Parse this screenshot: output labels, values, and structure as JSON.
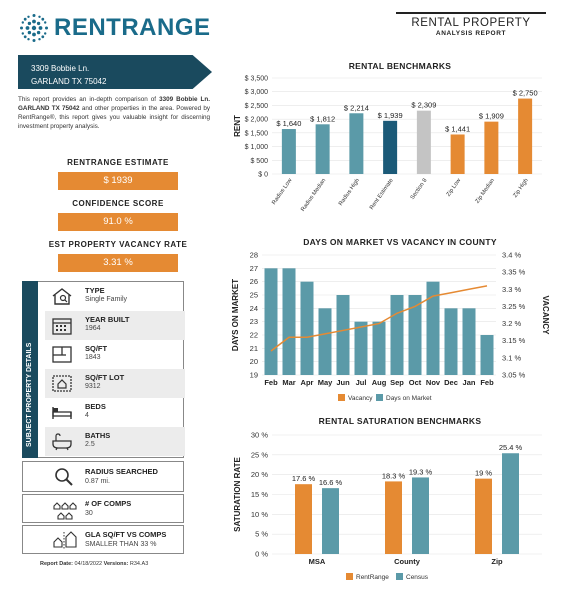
{
  "brand": {
    "name": "RENTRANGE"
  },
  "report_header": {
    "title": "RENTAL PROPERTY",
    "subtitle": "ANALYSIS REPORT"
  },
  "address": {
    "line1": "3309 Bobbie Ln.",
    "line2": "GARLAND TX 75042"
  },
  "description": {
    "pre": "This report provides an in-depth comparison of ",
    "bold1": "3309 Bobbie Ln. GARLAND TX 75042",
    "post": " and other properties in the area. Powered by RentRange®, this report gives you valuable insight for discerning investment property analysis."
  },
  "metrics": {
    "estimate_label": "RENTRANGE ESTIMATE",
    "estimate_value": "$ 1939",
    "confidence_label": "CONFIDENCE SCORE",
    "confidence_value": "91.0 %",
    "vacancy_label": "EST PROPERTY VACANCY RATE",
    "vacancy_value": "3.31 %"
  },
  "details": {
    "section_title": "SUBJECT PROPERTY DETAILS",
    "rows": [
      {
        "label": "TYPE",
        "value": "Single Family"
      },
      {
        "label": "YEAR BUILT",
        "value": "1964"
      },
      {
        "label": "SQ/FT",
        "value": "1843"
      },
      {
        "label": "SQ/FT LOT",
        "value": "9312"
      },
      {
        "label": "BEDS",
        "value": "4"
      },
      {
        "label": "BATHS",
        "value": "2.5"
      }
    ],
    "radius_label": "RADIUS SEARCHED",
    "radius_value": "0.87 mi.",
    "comps_label": "# OF COMPS",
    "comps_value": "30",
    "gla_label": "GLA SQ/FT VS COMPS",
    "gla_value": "SMALLER THAN 33 %"
  },
  "footer": {
    "report_date_label": "Report Date:",
    "report_date": "04/18/2022",
    "version_label": "Versions:",
    "version": "R34.A3"
  },
  "colors": {
    "navy": "#1a4a5e",
    "teal": "#5b9aa8",
    "dark_teal": "#1b5a78",
    "gray": "#c4c4c4",
    "orange": "#e58a33"
  },
  "chart_data": [
    {
      "type": "bar",
      "title": "RENTAL BENCHMARKS",
      "ylabel": "RENT",
      "ylim": [
        0,
        3500
      ],
      "yticks": [
        "$ 0",
        "$ 500",
        "$ 1,000",
        "$ 1,500",
        "$ 2,000",
        "$ 2,500",
        "$ 3,000",
        "$ 3,500"
      ],
      "categories": [
        "Radius Low",
        "Radius Median",
        "Radius High",
        "Rent Estimate",
        "Section 8",
        "Zip Low",
        "Zip Median",
        "Zip High"
      ],
      "values": [
        1640,
        1812,
        2214,
        1939,
        2309,
        1441,
        1909,
        2750
      ],
      "value_labels": [
        "$ 1,640",
        "$ 1,812",
        "$ 2,214",
        "$ 1,939",
        "$ 2,309",
        "$ 1,441",
        "$ 1,909",
        "$ 2,750"
      ],
      "bar_colors": [
        "#5b9aa8",
        "#5b9aa8",
        "#5b9aa8",
        "#1b5a78",
        "#c4c4c4",
        "#e58a33",
        "#e58a33",
        "#e58a33"
      ]
    },
    {
      "type": "bar",
      "title": "DAYS ON MARKET VS VACANCY IN COUNTY",
      "ylabel": "DAYS ON MARKET",
      "y2label": "VACANCY",
      "categories": [
        "Feb",
        "Mar",
        "Apr",
        "May",
        "Jun",
        "Jul",
        "Aug",
        "Sep",
        "Oct",
        "Nov",
        "Dec",
        "Jan",
        "Feb"
      ],
      "ylim": [
        19,
        28
      ],
      "yticks": [
        "19",
        "20",
        "21",
        "22",
        "23",
        "24",
        "25",
        "26",
        "27",
        "28"
      ],
      "y2lim": [
        3.05,
        3.4
      ],
      "y2ticks": [
        "3.05 %",
        "3.1 %",
        "3.15 %",
        "3.2 %",
        "3.25 %",
        "3.3 %",
        "3.35 %",
        "3.4 %"
      ],
      "series": [
        {
          "name": "Days on Market",
          "type": "bar",
          "color": "#5b9aa8",
          "values": [
            27,
            27,
            26,
            24,
            25,
            23,
            23,
            25,
            25,
            26,
            24,
            24,
            22
          ]
        },
        {
          "name": "Vacancy",
          "type": "line",
          "color": "#e58a33",
          "values": [
            3.12,
            3.16,
            3.16,
            3.17,
            3.18,
            3.19,
            3.2,
            3.23,
            3.25,
            3.28,
            3.29,
            3.3,
            3.31
          ]
        }
      ]
    },
    {
      "type": "bar",
      "title": "RENTAL SATURATION BENCHMARKS",
      "ylabel": "SATURATION RATE",
      "ylim": [
        0,
        30
      ],
      "yticks": [
        "0 %",
        "5 %",
        "10 %",
        "15 %",
        "20 %",
        "25 %",
        "30 %"
      ],
      "categories": [
        "MSA",
        "County",
        "Zip"
      ],
      "series": [
        {
          "name": "RentRange",
          "color": "#e58a33",
          "values": [
            17.6,
            18.3,
            19
          ],
          "labels": [
            "17.6 %",
            "18.3 %",
            "19 %"
          ]
        },
        {
          "name": "Census",
          "color": "#5b9aa8",
          "values": [
            16.6,
            19.3,
            25.4
          ],
          "labels": [
            "16.6 %",
            "19.3 %",
            "25.4 %"
          ]
        }
      ]
    }
  ]
}
